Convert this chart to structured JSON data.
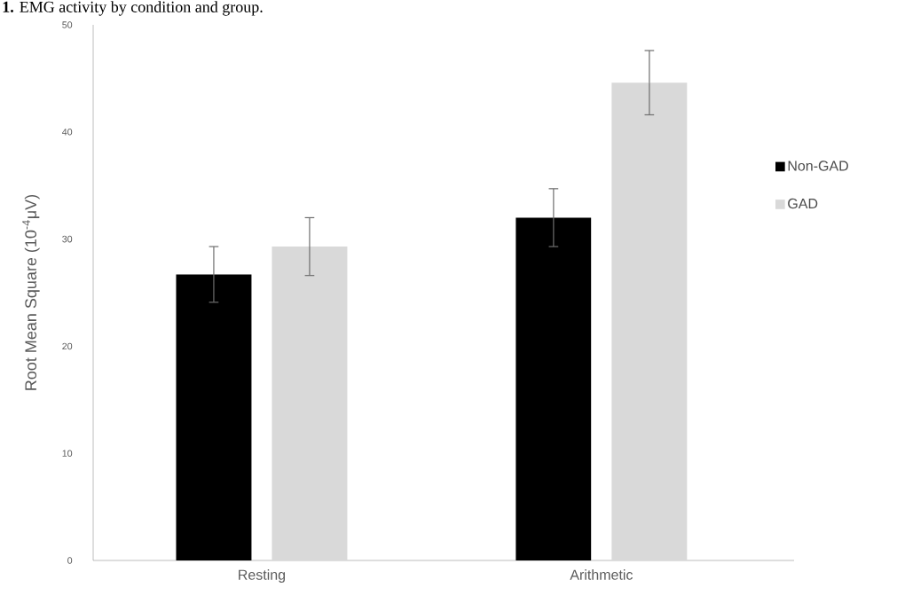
{
  "chart_data": {
    "type": "bar",
    "title": "**1.** EMG activity by condition and group.",
    "ylabel": "Root Mean Square (10$^{-4}$μV)",
    "categories": [
      "Resting",
      "Arithmetic"
    ],
    "series": [
      {
        "name": "Non-GAD",
        "color": "#000000",
        "values": [
          26.7,
          32.0
        ],
        "errors": [
          2.6,
          2.7
        ]
      },
      {
        "name": "GAD",
        "color": "#d9d9d9",
        "values": [
          29.3,
          44.6
        ],
        "errors": [
          2.7,
          3.0
        ]
      }
    ],
    "ylim": [
      0,
      50
    ],
    "yticks": [
      0,
      10,
      20,
      30,
      40,
      50
    ],
    "grid": false,
    "legend": "right"
  }
}
